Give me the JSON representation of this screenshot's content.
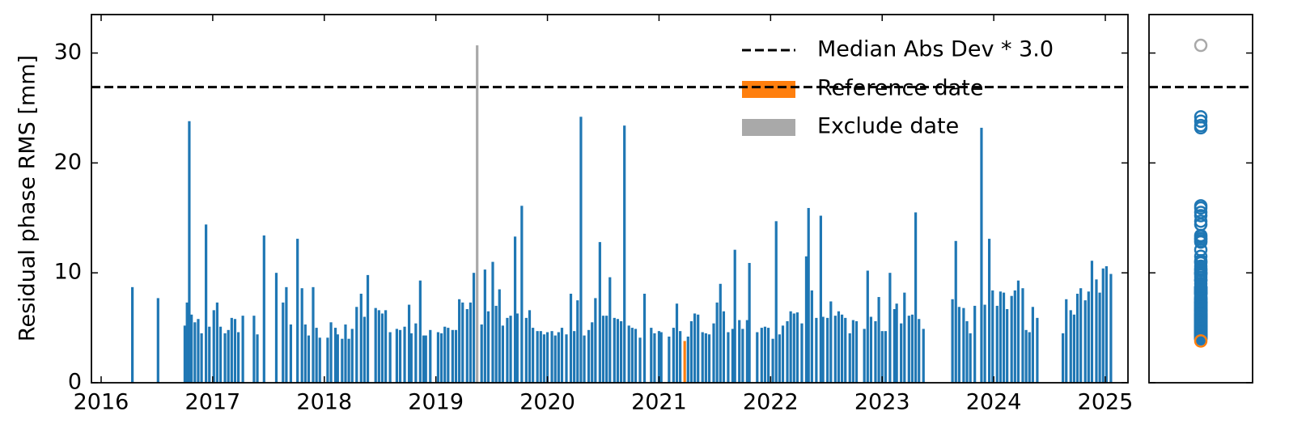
{
  "chart_data": {
    "type": "bar",
    "ylabel": "Residual phase RMS [mm]",
    "xlim": [
      2015.913,
      2025.203
    ],
    "ylim": [
      0,
      33.5
    ],
    "xticks": [
      2016,
      2017,
      2018,
      2019,
      2020,
      2021,
      2022,
      2023,
      2024,
      2025
    ],
    "yticks": [
      0,
      10,
      20,
      30
    ],
    "threshold": {
      "name": "Median Abs Dev * 3.0",
      "value": 26.9,
      "color": "#000000"
    },
    "series": [
      {
        "color": "#1f77b4",
        "x": [
          2016.28,
          2016.51,
          2016.75,
          2016.77,
          2016.79,
          2016.81,
          2016.84,
          2016.87,
          2016.9,
          2016.94,
          2016.97,
          2017.01,
          2017.04,
          2017.07,
          2017.11,
          2017.14,
          2017.17,
          2017.2,
          2017.23,
          2017.27,
          2017.37,
          2017.4,
          2017.46,
          2017.57,
          2017.63,
          2017.66,
          2017.7,
          2017.76,
          2017.8,
          2017.83,
          2017.86,
          2017.9,
          2017.93,
          2017.96,
          2018.03,
          2018.06,
          2018.1,
          2018.12,
          2018.16,
          2018.19,
          2018.22,
          2018.25,
          2018.29,
          2018.33,
          2018.36,
          2018.39,
          2018.46,
          2018.49,
          2018.52,
          2018.55,
          2018.59,
          2018.65,
          2018.68,
          2018.72,
          2018.76,
          2018.78,
          2018.82,
          2018.86,
          2018.89,
          2018.91,
          2018.95,
          2019.02,
          2019.05,
          2019.08,
          2019.11,
          2019.15,
          2019.18,
          2019.21,
          2019.24,
          2019.28,
          2019.31,
          2019.34,
          2019.41,
          2019.44,
          2019.47,
          2019.51,
          2019.54,
          2019.57,
          2019.6,
          2019.64,
          2019.67,
          2019.71,
          2019.73,
          2019.77,
          2019.81,
          2019.84,
          2019.87,
          2019.91,
          2019.94,
          2019.97,
          2020.0,
          2020.04,
          2020.07,
          2020.1,
          2020.13,
          2020.17,
          2020.21,
          2020.24,
          2020.27,
          2020.3,
          2020.33,
          2020.37,
          2020.4,
          2020.43,
          2020.47,
          2020.5,
          2020.53,
          2020.56,
          2020.6,
          2020.63,
          2020.66,
          2020.69,
          2020.73,
          2020.76,
          2020.79,
          2020.83,
          2020.87,
          2020.93,
          2020.96,
          2021.0,
          2021.02,
          2021.09,
          2021.13,
          2021.16,
          2021.19,
          2021.26,
          2021.29,
          2021.32,
          2021.35,
          2021.39,
          2021.42,
          2021.45,
          2021.49,
          2021.52,
          2021.55,
          2021.58,
          2021.62,
          2021.66,
          2021.68,
          2021.72,
          2021.75,
          2021.79,
          2021.81,
          2021.88,
          2021.92,
          2021.95,
          2021.98,
          2022.02,
          2022.05,
          2022.08,
          2022.11,
          2022.15,
          2022.18,
          2022.21,
          2022.24,
          2022.28,
          2022.32,
          2022.34,
          2022.37,
          2022.41,
          2022.45,
          2022.47,
          2022.51,
          2022.54,
          2022.58,
          2022.61,
          2022.64,
          2022.67,
          2022.71,
          2022.74,
          2022.77,
          2022.84,
          2022.87,
          2022.9,
          2022.94,
          2022.97,
          2023.0,
          2023.03,
          2023.07,
          2023.11,
          2023.13,
          2023.17,
          2023.2,
          2023.24,
          2023.27,
          2023.3,
          2023.33,
          2023.37,
          2023.63,
          2023.66,
          2023.69,
          2023.73,
          2023.76,
          2023.79,
          2023.83,
          2023.89,
          2023.92,
          2023.96,
          2023.99,
          2024.03,
          2024.06,
          2024.09,
          2024.12,
          2024.16,
          2024.19,
          2024.22,
          2024.26,
          2024.29,
          2024.32,
          2024.35,
          2024.39,
          2024.62,
          2024.65,
          2024.69,
          2024.72,
          2024.75,
          2024.78,
          2024.82,
          2024.85,
          2024.88,
          2024.92,
          2024.95,
          2024.98,
          2025.01,
          2025.05
        ],
        "values": [
          8.7,
          7.7,
          5.2,
          7.3,
          23.8,
          6.2,
          5.5,
          5.8,
          4.5,
          14.4,
          5.1,
          6.6,
          7.3,
          5.1,
          4.5,
          4.8,
          5.9,
          5.8,
          4.6,
          6.1,
          6.1,
          4.4,
          13.4,
          10.0,
          7.3,
          8.7,
          5.3,
          13.1,
          8.6,
          5.3,
          4.3,
          8.7,
          5.0,
          4.1,
          4.1,
          5.5,
          5.0,
          4.4,
          4.0,
          5.3,
          4.0,
          4.9,
          6.9,
          8.1,
          6.0,
          9.8,
          6.8,
          6.6,
          6.3,
          6.6,
          4.6,
          4.9,
          4.8,
          5.1,
          7.1,
          4.5,
          5.4,
          9.3,
          4.3,
          4.3,
          4.8,
          4.6,
          4.5,
          5.1,
          5.0,
          4.8,
          4.8,
          7.6,
          7.3,
          6.7,
          7.3,
          10.0,
          5.3,
          10.3,
          6.5,
          11.0,
          7.0,
          8.5,
          5.2,
          5.9,
          6.1,
          13.3,
          6.3,
          16.1,
          5.9,
          6.6,
          5.0,
          4.7,
          4.7,
          4.4,
          4.6,
          4.7,
          4.3,
          4.6,
          5.0,
          4.4,
          8.1,
          4.7,
          7.5,
          24.2,
          4.3,
          4.8,
          5.5,
          7.7,
          12.8,
          6.1,
          6.1,
          9.6,
          5.9,
          5.8,
          5.6,
          23.4,
          5.2,
          5.0,
          4.9,
          4.1,
          8.1,
          5.0,
          4.5,
          4.7,
          4.6,
          4.2,
          5.0,
          7.2,
          4.7,
          4.2,
          5.6,
          6.3,
          6.2,
          4.6,
          4.5,
          4.4,
          5.4,
          7.3,
          9.0,
          6.5,
          4.6,
          4.9,
          12.1,
          5.7,
          4.9,
          5.7,
          10.9,
          4.6,
          5.0,
          5.1,
          5.0,
          4.0,
          14.7,
          4.4,
          5.2,
          5.6,
          6.5,
          6.3,
          6.4,
          5.4,
          11.5,
          15.9,
          8.4,
          5.9,
          15.2,
          6.0,
          5.9,
          7.4,
          6.1,
          6.5,
          6.2,
          5.9,
          4.5,
          5.7,
          5.6,
          4.9,
          10.2,
          6.0,
          5.6,
          7.8,
          4.7,
          4.7,
          10.0,
          6.7,
          7.2,
          5.4,
          8.2,
          6.1,
          6.2,
          15.5,
          5.8,
          4.9,
          7.6,
          12.9,
          6.9,
          6.8,
          5.6,
          4.5,
          7.0,
          23.2,
          7.1,
          13.1,
          8.4,
          7.0,
          8.3,
          8.2,
          6.7,
          7.9,
          8.4,
          9.3,
          8.6,
          4.8,
          4.6,
          6.9,
          5.9,
          4.5,
          7.6,
          6.6,
          6.2,
          8.1,
          8.6,
          7.5,
          8.3,
          11.1,
          9.4,
          8.2,
          10.4,
          10.6,
          9.9
        ]
      },
      {
        "name": "Reference date",
        "color": "#ff7f0e",
        "x": [
          2021.23
        ],
        "values": [
          3.8
        ]
      },
      {
        "name": "Exclude date",
        "color": "#a9a9a9",
        "x": [
          2019.37
        ],
        "values": [
          30.7
        ]
      }
    ]
  }
}
